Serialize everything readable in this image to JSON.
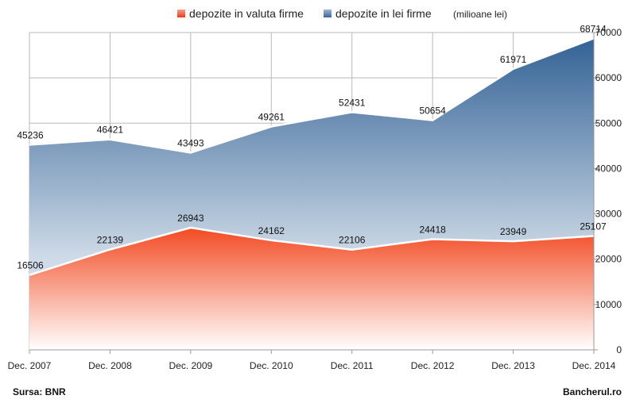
{
  "legend": {
    "unit": "(milioane lei)"
  },
  "footer": {
    "source": "Sursa: BNR",
    "brand": "Bancherul.ro"
  },
  "colors": {
    "valuta_top": "#f24a22",
    "valuta_bottom": "#ffffff",
    "lei_top": "#2f5f93",
    "lei_bottom": "#cfdbe8",
    "grid": "#b9b9b9",
    "axis": "#999999"
  },
  "chart_data": {
    "type": "area",
    "categories": [
      "Dec. 2007",
      "Dec. 2008",
      "Dec. 2009",
      "Dec. 2010",
      "Dec. 2011",
      "Dec. 2012",
      "Dec. 2013",
      "Dec. 2014"
    ],
    "series": [
      {
        "name": "depozite in valuta firme",
        "values": [
          16506,
          22139,
          26943,
          24162,
          22106,
          24418,
          23949,
          25107
        ]
      },
      {
        "name": "depozite in lei firme",
        "values": [
          45236,
          46421,
          43493,
          49261,
          52431,
          50654,
          61971,
          68714
        ]
      }
    ],
    "ylim": [
      0,
      70000
    ],
    "yticks": [
      0,
      10000,
      20000,
      30000,
      40000,
      50000,
      60000,
      70000
    ],
    "y_axis_side": "right",
    "grid": true,
    "legend_position": "top"
  }
}
